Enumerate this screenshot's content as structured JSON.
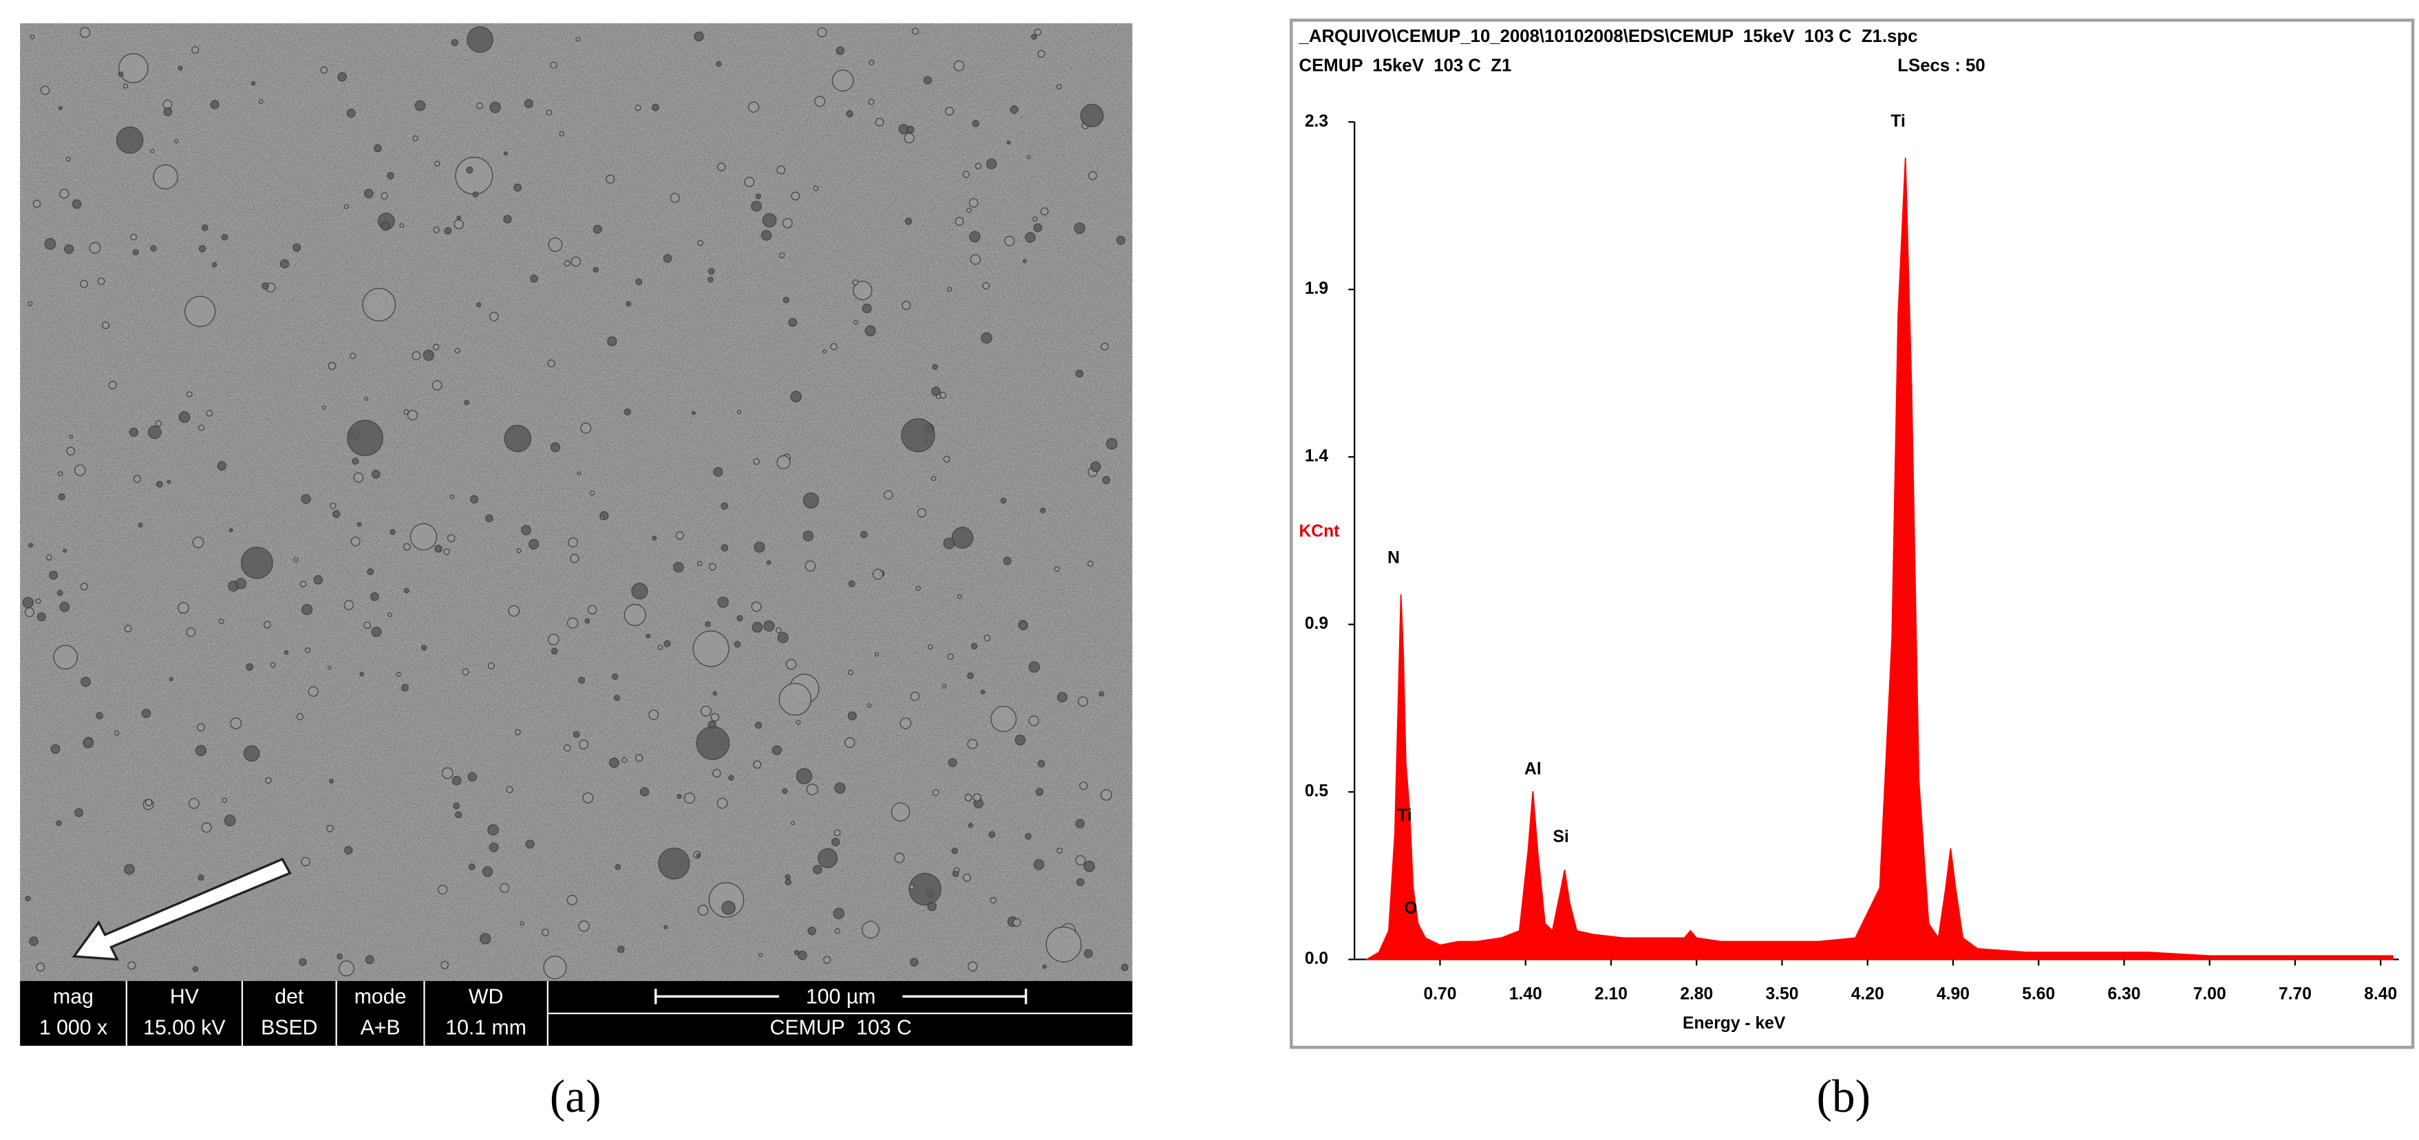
{
  "figure": {
    "panel_a": {
      "info_bar": [
        {
          "label": "mag",
          "value": "1 000 x"
        },
        {
          "label": "HV",
          "value": "15.00 kV"
        },
        {
          "label": "det",
          "value": "BSED"
        },
        {
          "label": "mode",
          "value": "A+B"
        },
        {
          "label": "WD",
          "value": "10.1 mm"
        }
      ],
      "scale_bar": "100 µm",
      "sample": "CEMUP  103 C",
      "caption": "(a)"
    },
    "panel_b_caption": "(b)"
  },
  "chart_data": {
    "type": "area",
    "header_lines": [
      "_ARQUIVO\\CEMUP_10_2008\\10102008\\EDS\\CEMUP  15keV  103 C  Z1.spc",
      "CEMUP  15keV  103 C  Z1"
    ],
    "live_time": "LSecs : 50",
    "ylabel": "KCnt",
    "xlabel": "Energy - keV",
    "color": "#ff0000",
    "xlim": [
      0,
      8.55
    ],
    "ylim": [
      0,
      2.34
    ],
    "xticks": [
      {
        "value": 0.7,
        "label": "0.70"
      },
      {
        "value": 1.4,
        "label": "1.40"
      },
      {
        "value": 2.1,
        "label": "2.10"
      },
      {
        "value": 2.8,
        "label": "2.80"
      },
      {
        "value": 3.5,
        "label": "3.50"
      },
      {
        "value": 4.2,
        "label": "4.20"
      },
      {
        "value": 4.9,
        "label": "4.90"
      },
      {
        "value": 5.6,
        "label": "5.60"
      },
      {
        "value": 6.3,
        "label": "6.30"
      },
      {
        "value": 7.0,
        "label": "7.00"
      },
      {
        "value": 7.7,
        "label": "7.70"
      },
      {
        "value": 8.4,
        "label": "8.40"
      }
    ],
    "yticks": [
      {
        "value": 0,
        "label": "0.0"
      },
      {
        "value": 0.468,
        "label": "0.5"
      },
      {
        "value": 0.936,
        "label": "0.9"
      },
      {
        "value": 1.404,
        "label": "1.4"
      },
      {
        "value": 1.872,
        "label": "1.9"
      },
      {
        "value": 2.34,
        "label": "2.3"
      }
    ],
    "x": [
      0.1,
      0.2,
      0.28,
      0.33,
      0.36,
      0.38,
      0.4,
      0.42,
      0.45,
      0.48,
      0.52,
      0.58,
      0.7,
      0.85,
      1.0,
      1.2,
      1.35,
      1.42,
      1.46,
      1.5,
      1.56,
      1.62,
      1.68,
      1.72,
      1.76,
      1.82,
      1.95,
      2.2,
      2.5,
      2.7,
      2.75,
      2.8,
      3.0,
      3.4,
      3.8,
      4.1,
      4.3,
      4.4,
      4.45,
      4.51,
      4.56,
      4.62,
      4.7,
      4.78,
      4.84,
      4.88,
      4.92,
      4.98,
      5.1,
      5.5,
      6.0,
      6.5,
      7.0,
      7.5,
      8.0,
      8.5
    ],
    "values": [
      0.0,
      0.02,
      0.08,
      0.35,
      0.75,
      1.02,
      0.85,
      0.55,
      0.42,
      0.2,
      0.1,
      0.06,
      0.04,
      0.05,
      0.05,
      0.06,
      0.08,
      0.3,
      0.47,
      0.3,
      0.1,
      0.08,
      0.18,
      0.25,
      0.16,
      0.08,
      0.07,
      0.06,
      0.06,
      0.06,
      0.08,
      0.06,
      0.05,
      0.05,
      0.05,
      0.06,
      0.2,
      0.9,
      1.8,
      2.24,
      1.6,
      0.5,
      0.1,
      0.06,
      0.2,
      0.31,
      0.2,
      0.06,
      0.03,
      0.02,
      0.02,
      0.02,
      0.01,
      0.01,
      0.01,
      0.01
    ],
    "peak_labels": [
      {
        "text": "N",
        "x": 0.32,
        "y": 1.12
      },
      {
        "text": "Ti",
        "x": 0.41,
        "y": 0.4
      },
      {
        "text": "O",
        "x": 0.46,
        "y": 0.14
      },
      {
        "text": "Al",
        "x": 1.46,
        "y": 0.53
      },
      {
        "text": "Si",
        "x": 1.69,
        "y": 0.34
      },
      {
        "text": "Ti",
        "x": 4.45,
        "y": 2.34
      }
    ]
  }
}
